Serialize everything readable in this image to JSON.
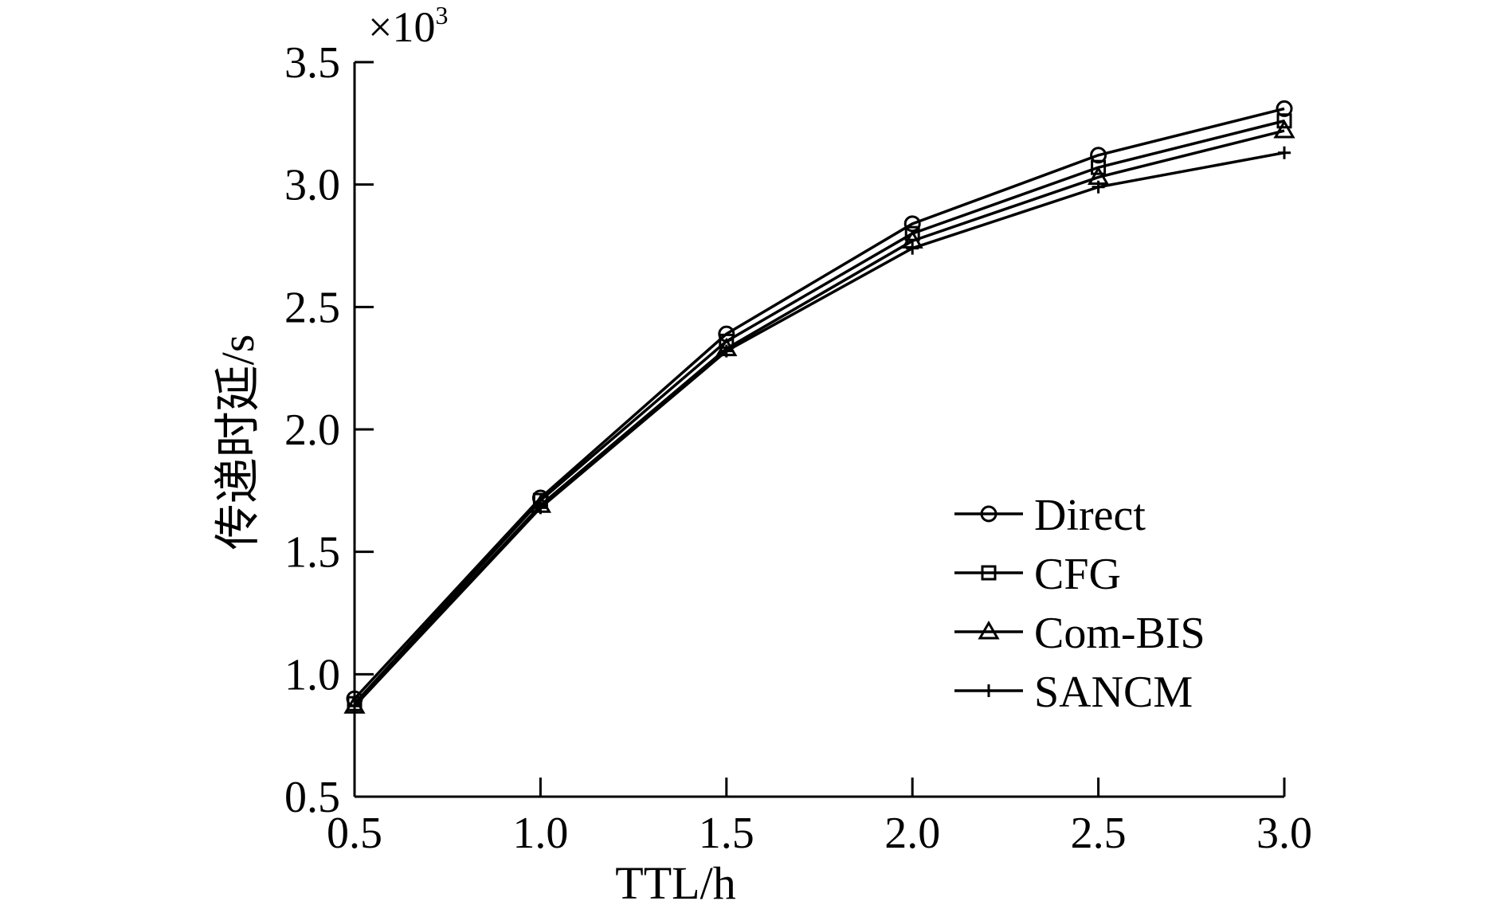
{
  "chart_data": {
    "type": "line",
    "xlabel": "TTL/h",
    "ylabel": "传递时延/s",
    "y_multiplier": "×10",
    "y_multiplier_exp": "3",
    "x": [
      0.5,
      1.0,
      1.5,
      2.0,
      2.5,
      3.0
    ],
    "x_ticks": [
      "0.5",
      "1.0",
      "1.5",
      "2.0",
      "2.5",
      "3.0"
    ],
    "y_ticks": [
      "0.5",
      "1.0",
      "1.5",
      "2.0",
      "2.5",
      "3.0",
      "3.5"
    ],
    "xlim": [
      0.5,
      3.0
    ],
    "ylim": [
      0.5,
      3.5
    ],
    "grid": false,
    "legend_position": "lower-right",
    "series": [
      {
        "name": "Direct",
        "marker": "circle",
        "values": [
          0.9,
          1.72,
          2.39,
          2.84,
          3.12,
          3.31
        ]
      },
      {
        "name": "CFG",
        "marker": "square",
        "values": [
          0.88,
          1.71,
          2.36,
          2.8,
          3.07,
          3.26
        ]
      },
      {
        "name": "Com-BIS",
        "marker": "triangle",
        "values": [
          0.87,
          1.69,
          2.33,
          2.77,
          3.03,
          3.22
        ]
      },
      {
        "name": "SANCM",
        "marker": "plus",
        "values": [
          0.87,
          1.68,
          2.32,
          2.74,
          2.99,
          3.13
        ]
      }
    ]
  }
}
